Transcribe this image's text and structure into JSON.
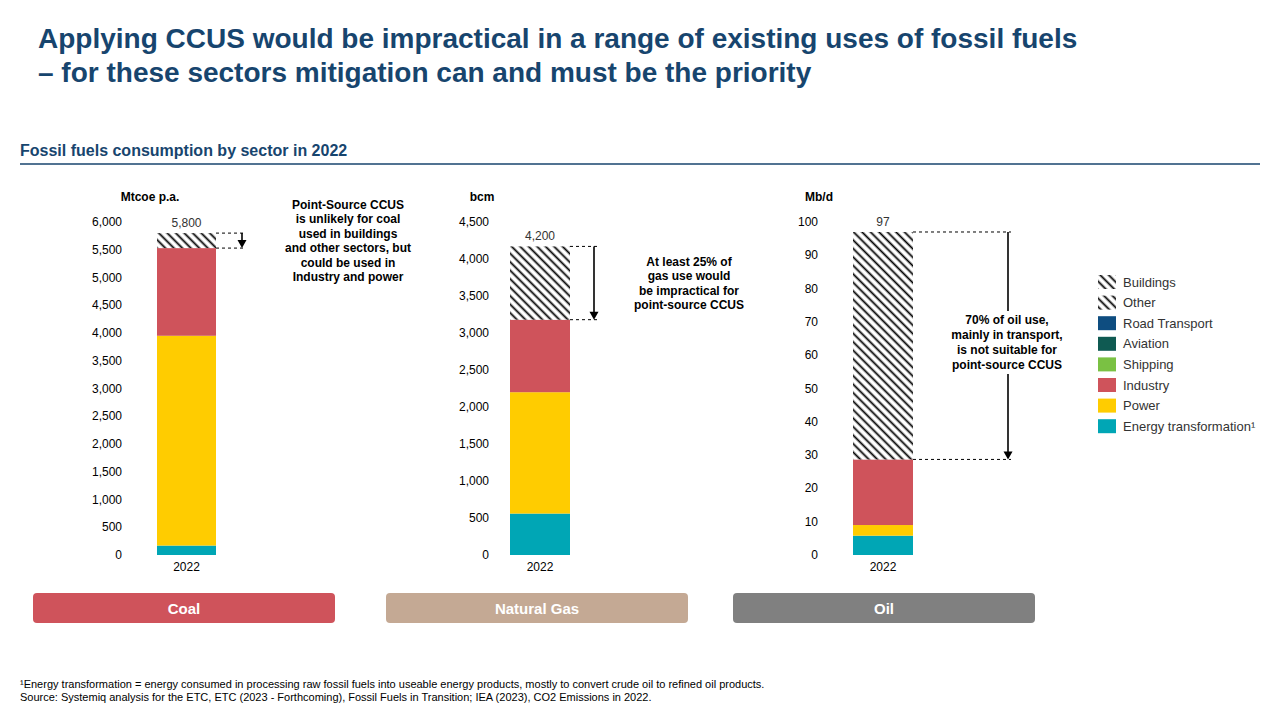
{
  "header": {
    "title": [
      "Applying CCUS would be impractical in a range of existing uses of fossil fuels",
      "– for these sectors mitigation can and must be the priority"
    ],
    "subtitle": "Fossil fuels consumption by sector in 2022"
  },
  "chart_data": [
    {
      "type": "bar",
      "title": "Coal",
      "ylabel": "Mtcoe p.a.",
      "stacked": true,
      "grid": false,
      "categories": [
        "2022"
      ],
      "ylim": [
        0,
        6000
      ],
      "yticks": [
        0,
        500,
        {
          "value": 1000,
          "label": "1,000"
        },
        {
          "value": 1500,
          "label": "1,500"
        },
        {
          "value": 2000,
          "label": "2,000"
        },
        {
          "value": 2500,
          "label": "2,500"
        },
        {
          "value": 3000,
          "label": "3,000"
        },
        {
          "value": 3500,
          "label": "3,500"
        },
        {
          "value": 4000,
          "label": "4,000"
        },
        {
          "value": 4500,
          "label": "4,500"
        },
        {
          "value": 5000,
          "label": "5,000"
        },
        {
          "value": 5500,
          "label": "5,500"
        },
        {
          "value": 6000,
          "label": "6,000"
        }
      ],
      "series": [
        {
          "name": "Buildings",
          "color": "#000000",
          "line_style": "hatch",
          "values": [
            null
          ]
        },
        {
          "name": "Other",
          "color": "#000000",
          "line_style": "hatch",
          "values": [
            270
          ]
        },
        {
          "name": "Road Transport",
          "color": "#0e4d80",
          "values": [
            null
          ]
        },
        {
          "name": "Aviation",
          "color": "#0f5a52",
          "values": [
            null
          ]
        },
        {
          "name": "Shipping",
          "color": "#7ac143",
          "values": [
            null
          ]
        },
        {
          "name": "Industry",
          "color": "#cf535b",
          "values": [
            1580
          ]
        },
        {
          "name": "Power",
          "color": "#ffcc00",
          "values": [
            3780
          ]
        },
        {
          "name": "Energy transformation¹",
          "color": "#00a6b5",
          "values": [
            170
          ]
        }
      ],
      "annotations": {
        "total": "5,800",
        "note": [
          "Point-Source CCUS",
          "is unlikely for coal",
          "used in buildings",
          "and other sectors, but",
          "could be used in",
          "Industry and power"
        ]
      }
    },
    {
      "type": "bar",
      "title": "Natural Gas",
      "ylabel": "bcm",
      "stacked": true,
      "grid": false,
      "categories": [
        "2022"
      ],
      "ylim": [
        0,
        4500
      ],
      "yticks": [
        0,
        500,
        {
          "value": 1000,
          "label": "1,000"
        },
        {
          "value": 1500,
          "label": "1,500"
        },
        {
          "value": 2000,
          "label": "2,000"
        },
        {
          "value": 2500,
          "label": "2,500"
        },
        {
          "value": 3000,
          "label": "3,000"
        },
        {
          "value": 3500,
          "label": "3,500"
        },
        {
          "value": 4000,
          "label": "4,000"
        },
        {
          "value": 4500,
          "label": "4,500"
        }
      ],
      "series": [
        {
          "name": "Buildings",
          "color": "#000000",
          "line_style": "hatch",
          "values": [
            null
          ]
        },
        {
          "name": "Other",
          "color": "#000000",
          "line_style": "hatch",
          "values": [
            990
          ]
        },
        {
          "name": "Road Transport",
          "color": "#0e4d80",
          "values": [
            null
          ]
        },
        {
          "name": "Aviation",
          "color": "#0f5a52",
          "values": [
            null
          ]
        },
        {
          "name": "Shipping",
          "color": "#7ac143",
          "values": [
            null
          ]
        },
        {
          "name": "Industry",
          "color": "#cf535b",
          "values": [
            980
          ]
        },
        {
          "name": "Power",
          "color": "#ffcc00",
          "values": [
            1640
          ]
        },
        {
          "name": "Energy transformation¹",
          "color": "#00a6b5",
          "values": [
            560
          ]
        }
      ],
      "annotations": {
        "total": "4,200",
        "note": [
          "At least 25% of",
          "gas use would",
          "be impractical for",
          "point-source CCUS"
        ]
      }
    },
    {
      "type": "bar",
      "title": "Oil",
      "ylabel": "Mb/d",
      "stacked": true,
      "grid": false,
      "legend": "right",
      "categories": [
        "2022"
      ],
      "ylim": [
        0,
        100
      ],
      "yticks": [
        0,
        10,
        20,
        30,
        40,
        50,
        60,
        70,
        80,
        90,
        100
      ],
      "series": [
        {
          "name": "Buildings",
          "color": "#000000",
          "line_style": "hatch",
          "values": [
            null
          ]
        },
        {
          "name": "Other",
          "color": "#000000",
          "line_style": "hatch",
          "values": [
            68.3
          ]
        },
        {
          "name": "Road Transport",
          "color": "#0e4d80",
          "values": [
            null
          ]
        },
        {
          "name": "Aviation",
          "color": "#0f5a52",
          "values": [
            null
          ]
        },
        {
          "name": "Shipping",
          "color": "#7ac143",
          "values": [
            null
          ]
        },
        {
          "name": "Industry",
          "color": "#cf535b",
          "values": [
            19.7
          ]
        },
        {
          "name": "Power",
          "color": "#ffcc00",
          "values": [
            3.2
          ]
        },
        {
          "name": "Energy transformation¹",
          "color": "#00a6b5",
          "values": [
            5.8
          ]
        }
      ],
      "annotations": {
        "total": "97",
        "note": [
          "70% of oil use,",
          "mainly in transport,",
          "is not suitable for",
          "point-source CCUS"
        ]
      }
    }
  ],
  "footnotes": [
    "¹Energy transformation = energy consumed in processing raw fossil fuels into useable energy products, mostly to convert crude oil to refined oil products.",
    "Source: Systemiq analysis for the ETC, ETC (2023 - Forthcoming), Fossil Fuels in Transition; IEA (2023), CO2 Emissions in 2022."
  ]
}
